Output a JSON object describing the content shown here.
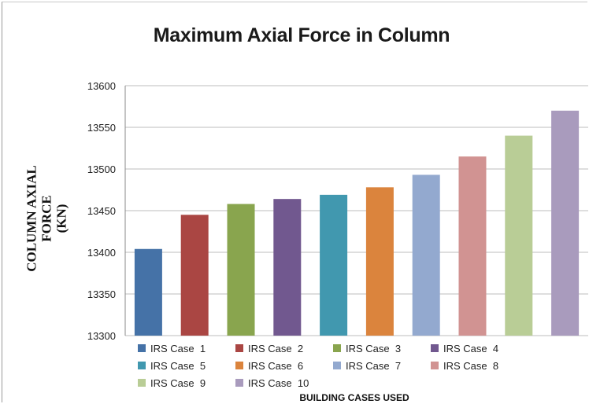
{
  "chart_data": {
    "type": "bar",
    "title": "Maximum Axial Force in Column",
    "ylabel_lines": [
      "COLUMN AXIAL",
      "FORCE",
      "(KN)"
    ],
    "xlabel": "BUILDING CASES USED",
    "ylim": [
      13300,
      13600
    ],
    "yticks": [
      13300,
      13350,
      13400,
      13450,
      13500,
      13550,
      13600
    ],
    "grid": true,
    "legend_position": "bottom",
    "series": [
      {
        "name": "IRS Case  1",
        "value": 13404,
        "color": "#4572a7"
      },
      {
        "name": "IRS Case  2",
        "value": 13445,
        "color": "#aa4643"
      },
      {
        "name": "IRS Case  3",
        "value": 13458,
        "color": "#89a54e"
      },
      {
        "name": "IRS Case  4",
        "value": 13464,
        "color": "#71588f"
      },
      {
        "name": "IRS Case  5",
        "value": 13469,
        "color": "#4198af"
      },
      {
        "name": "IRS Case  6",
        "value": 13478,
        "color": "#db843d"
      },
      {
        "name": "IRS Case  7",
        "value": 13493,
        "color": "#93a9cf"
      },
      {
        "name": "IRS Case  8",
        "value": 13515,
        "color": "#d19392"
      },
      {
        "name": "IRS Case  9",
        "value": 13540,
        "color": "#b9cd96"
      },
      {
        "name": "IRS Case  10",
        "value": 13570,
        "color": "#a99bbd"
      }
    ]
  }
}
